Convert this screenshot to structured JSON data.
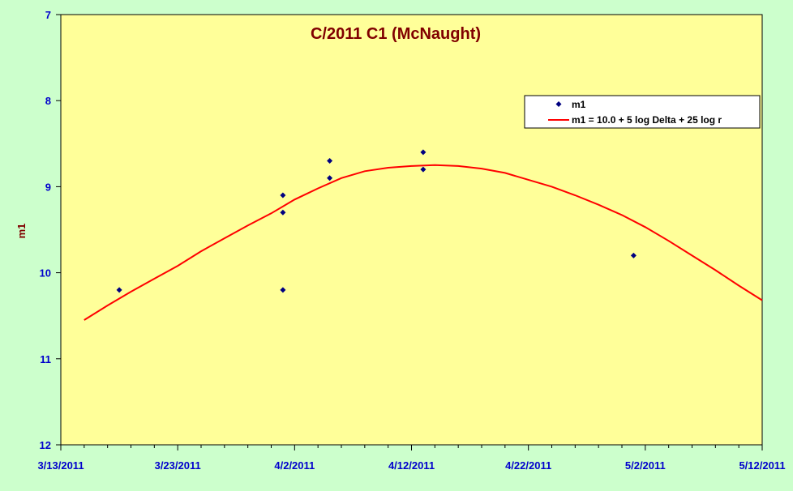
{
  "colors": {
    "page_background": "#ccffcc",
    "plot_background": "#ffff99",
    "title": "#800000",
    "axis_labels": "#0000cc",
    "ylabel": "#800000",
    "points": "#000080",
    "fit_line": "#ff0000"
  },
  "chart_data": {
    "type": "scatter",
    "title": "C/2011 C1 (McNaught)",
    "xlabel": "",
    "ylabel": "m1",
    "x_axis": {
      "type": "date",
      "min": "2011-03-13",
      "max": "2011-05-12",
      "major_step_days": 10,
      "minor_step_days": 2,
      "tick_labels": [
        "3/13/2011",
        "3/23/2011",
        "4/2/2011",
        "4/12/2011",
        "4/22/2011",
        "5/2/2011",
        "5/12/2011"
      ]
    },
    "y_axis": {
      "min": 7,
      "max": 12,
      "reversed": true,
      "tick_labels": [
        "7",
        "8",
        "9",
        "10",
        "11",
        "12"
      ]
    },
    "grid": false,
    "legend_position": "top-right",
    "legend": {
      "points_label": "m1",
      "line_label": "m1 = 10.0 + 5 log Delta + 25 log r"
    },
    "series": [
      {
        "name": "m1",
        "kind": "points",
        "points": [
          {
            "x": "2011-03-18",
            "y": 10.2
          },
          {
            "x": "2011-04-01",
            "y": 9.1
          },
          {
            "x": "2011-04-01",
            "y": 9.3
          },
          {
            "x": "2011-04-01",
            "y": 10.2
          },
          {
            "x": "2011-04-05",
            "y": 8.7
          },
          {
            "x": "2011-04-05",
            "y": 8.9
          },
          {
            "x": "2011-04-13",
            "y": 8.6
          },
          {
            "x": "2011-04-13",
            "y": 8.8
          },
          {
            "x": "2011-05-01",
            "y": 9.8
          }
        ]
      },
      {
        "name": "m1 = 10.0 + 5 log Delta + 25 log r",
        "kind": "line",
        "points": [
          {
            "x": "2011-03-15",
            "y": 10.55
          },
          {
            "x": "2011-03-17",
            "y": 10.38
          },
          {
            "x": "2011-03-19",
            "y": 10.22
          },
          {
            "x": "2011-03-21",
            "y": 10.07
          },
          {
            "x": "2011-03-23",
            "y": 9.92
          },
          {
            "x": "2011-03-25",
            "y": 9.75
          },
          {
            "x": "2011-03-27",
            "y": 9.6
          },
          {
            "x": "2011-03-29",
            "y": 9.45
          },
          {
            "x": "2011-03-31",
            "y": 9.31
          },
          {
            "x": "2011-04-02",
            "y": 9.15
          },
          {
            "x": "2011-04-04",
            "y": 9.02
          },
          {
            "x": "2011-04-06",
            "y": 8.9
          },
          {
            "x": "2011-04-08",
            "y": 8.82
          },
          {
            "x": "2011-04-10",
            "y": 8.78
          },
          {
            "x": "2011-04-12",
            "y": 8.76
          },
          {
            "x": "2011-04-14",
            "y": 8.75
          },
          {
            "x": "2011-04-16",
            "y": 8.76
          },
          {
            "x": "2011-04-18",
            "y": 8.79
          },
          {
            "x": "2011-04-20",
            "y": 8.84
          },
          {
            "x": "2011-04-22",
            "y": 8.92
          },
          {
            "x": "2011-04-24",
            "y": 9.0
          },
          {
            "x": "2011-04-26",
            "y": 9.1
          },
          {
            "x": "2011-04-28",
            "y": 9.21
          },
          {
            "x": "2011-04-30",
            "y": 9.33
          },
          {
            "x": "2011-05-02",
            "y": 9.47
          },
          {
            "x": "2011-05-04",
            "y": 9.63
          },
          {
            "x": "2011-05-06",
            "y": 9.8
          },
          {
            "x": "2011-05-08",
            "y": 9.97
          },
          {
            "x": "2011-05-10",
            "y": 10.15
          },
          {
            "x": "2011-05-12",
            "y": 10.32
          }
        ]
      }
    ]
  }
}
